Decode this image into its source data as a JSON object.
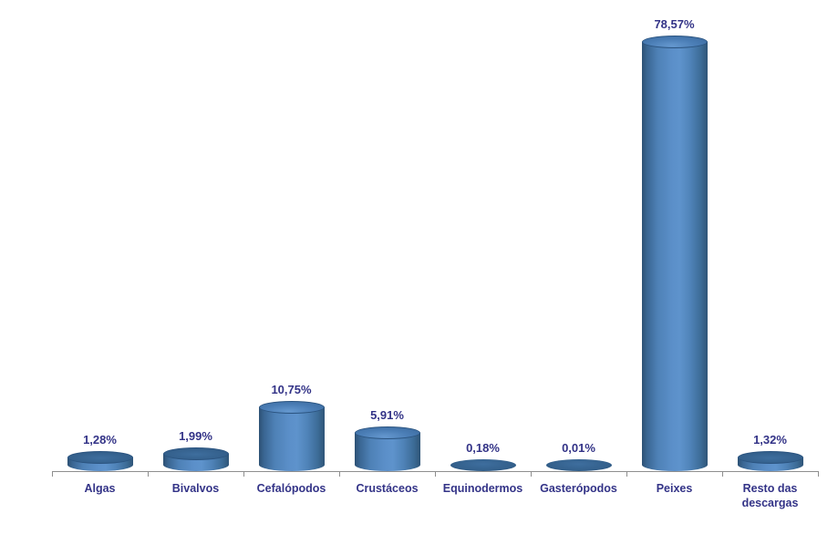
{
  "chart_data": {
    "type": "bar",
    "style": "3d-cylinder",
    "title": "",
    "xlabel": "",
    "ylabel": "",
    "legend": false,
    "gridlines": false,
    "unit": "%",
    "ylim": [
      0,
      80
    ],
    "categories": [
      "Algas",
      "Bivalvos",
      "Cefalópodos",
      "Crustáceos",
      "Equinodermos",
      "Gasterópodos",
      "Peixes",
      "Resto das descargas"
    ],
    "values": [
      1.28,
      1.99,
      10.75,
      5.91,
      0.18,
      0.01,
      78.57,
      1.32
    ],
    "value_labels": [
      "1,28%",
      "1,99%",
      "10,75%",
      "5,91%",
      "0,18%",
      "0,01%",
      "78,57%",
      "1,32%"
    ],
    "colors": {
      "bar_body_light": "#5b8fc9",
      "bar_body_dark": "#2d5174",
      "bar_cap": "#4a7db5",
      "bar_cap_small": "#34618d",
      "label_text": "#333387",
      "axis_line": "#8e8e8e",
      "background": "#ffffff"
    }
  }
}
